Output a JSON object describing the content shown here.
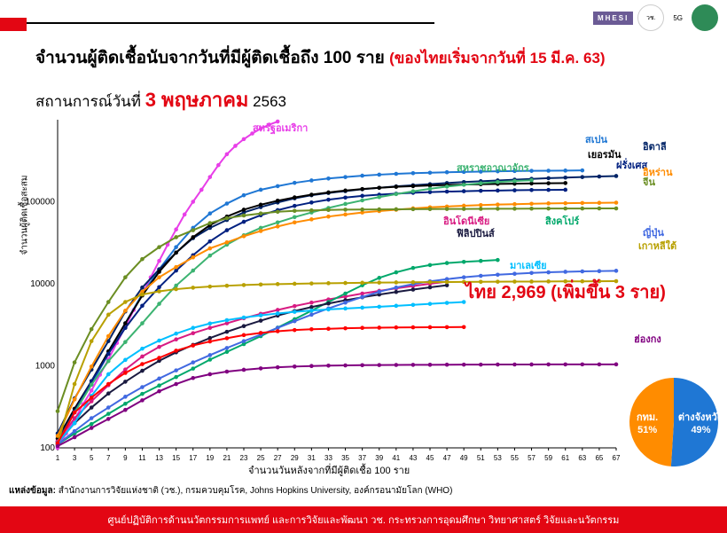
{
  "header": {
    "logos": [
      "MHESI",
      "วช.",
      "5G",
      "กรมควบคุมโรค"
    ],
    "title_black": "จำนวนผู้ติดเชื้อนับจากวันที่มีผู้ติดเชื้อถึง 100 ราย",
    "title_red": "(ของไทยเริ่มจากวันที่ 15 มี.ค. 63)",
    "subtitle_prefix": "สถานการณ์วันที่",
    "subtitle_date": "3 พฤษภาคม",
    "subtitle_year": "2563"
  },
  "chart": {
    "type": "line",
    "yscale": "log",
    "ylim": [
      100,
      1000000
    ],
    "yticks": [
      100,
      1000,
      10000,
      100000
    ],
    "xlim": [
      1,
      67
    ],
    "xticks": [
      1,
      3,
      5,
      7,
      9,
      11,
      13,
      15,
      17,
      19,
      21,
      23,
      25,
      27,
      29,
      31,
      33,
      35,
      37,
      39,
      41,
      43,
      45,
      47,
      49,
      51,
      53,
      55,
      57,
      59,
      61,
      63,
      65,
      67
    ],
    "ylabel": "จำนวนผู้ติดเชื้อสะสม",
    "xlabel": "จำนวนวันหลังจากที่มีผู้ติดเชื้อ 100 ราย",
    "background": "#ffffff",
    "grid": false,
    "series": [
      {
        "name": "สหรัฐอเมริกา",
        "color": "#e83ee8",
        "label_x": 230,
        "label_y": 5,
        "x": [
          1,
          2,
          3,
          4,
          5,
          6,
          7,
          8,
          9,
          10,
          11,
          12,
          13,
          14,
          15,
          16,
          17,
          18,
          19,
          20,
          21,
          22,
          23,
          24,
          25,
          26,
          27
        ],
        "y": [
          100,
          150,
          220,
          340,
          500,
          780,
          1200,
          1900,
          3000,
          4800,
          7500,
          12000,
          19000,
          30000,
          46000,
          70000,
          100000,
          140000,
          200000,
          280000,
          380000,
          480000,
          580000,
          680000,
          780000,
          870000,
          950000
        ]
      },
      {
        "name": "สเปน",
        "color": "#1f77d4",
        "label_x": 605,
        "label_y": 18,
        "x": [
          1,
          3,
          5,
          7,
          9,
          11,
          13,
          15,
          17,
          19,
          21,
          23,
          25,
          27,
          29,
          31,
          33,
          35,
          37,
          39,
          41,
          43,
          45,
          47,
          49,
          51,
          53,
          55,
          57,
          59,
          61,
          63
        ],
        "y": [
          120,
          280,
          600,
          1400,
          3300,
          7500,
          15000,
          28000,
          48000,
          72000,
          95000,
          120000,
          140000,
          155000,
          170000,
          182000,
          192000,
          200000,
          208000,
          214000,
          219000,
          223000,
          226000,
          229000,
          231000,
          233000,
          235000,
          237000,
          238000,
          239000,
          240000,
          241000
        ]
      },
      {
        "name": "อิตาลี",
        "color": "#002366",
        "label_x": 670,
        "label_y": 26,
        "x": [
          1,
          3,
          5,
          7,
          9,
          11,
          13,
          15,
          17,
          19,
          21,
          23,
          25,
          27,
          29,
          31,
          33,
          35,
          37,
          39,
          41,
          43,
          45,
          47,
          49,
          51,
          53,
          55,
          57,
          59,
          61,
          63,
          65,
          67
        ],
        "y": [
          150,
          400,
          900,
          2000,
          4600,
          9000,
          15000,
          24000,
          36000,
          48000,
          60000,
          74000,
          86000,
          98000,
          110000,
          120000,
          128000,
          135000,
          142000,
          148000,
          154000,
          159000,
          164000,
          169000,
          174000,
          178000,
          182000,
          186000,
          190000,
          194000,
          197000,
          200000,
          203000,
          206000
        ]
      },
      {
        "name": "เยอรมัน",
        "color": "#000000",
        "label_x": 608,
        "label_y": 35,
        "x": [
          1,
          3,
          5,
          7,
          9,
          11,
          13,
          15,
          17,
          19,
          21,
          23,
          25,
          27,
          29,
          31,
          33,
          35,
          37,
          39,
          41,
          43,
          45,
          47,
          49,
          51,
          53,
          55,
          57,
          59,
          61
        ],
        "y": [
          130,
          300,
          650,
          1500,
          3300,
          7200,
          14000,
          24000,
          37000,
          52000,
          66000,
          80000,
          92000,
          103000,
          113000,
          122000,
          130000,
          137000,
          143000,
          148000,
          152000,
          155000,
          158000,
          160000,
          162000,
          163500,
          165000,
          166000,
          167000,
          168000,
          169000
        ]
      },
      {
        "name": "ฝรั่งเศส",
        "color": "#002080",
        "label_x": 640,
        "label_y": 47,
        "x": [
          1,
          3,
          5,
          7,
          9,
          11,
          13,
          15,
          17,
          19,
          21,
          23,
          25,
          27,
          29,
          31,
          33,
          35,
          37,
          39,
          41,
          43,
          45,
          47,
          49,
          51,
          53,
          55,
          57,
          59,
          61
        ],
        "y": [
          120,
          280,
          650,
          1400,
          2900,
          5400,
          9100,
          14500,
          22300,
          32900,
          45000,
          57000,
          68500,
          79000,
          89000,
          98000,
          106000,
          112500,
          118000,
          122000,
          125500,
          128500,
          131000,
          133000,
          134500,
          136000,
          137000,
          138000,
          139000,
          139500,
          140000
        ]
      },
      {
        "name": "สหราชอาณาจักร",
        "color": "#3cb371",
        "label_x": 460,
        "label_y": 50,
        "x": [
          1,
          3,
          5,
          7,
          9,
          11,
          13,
          15,
          17,
          19,
          21,
          23,
          25,
          27,
          29,
          31,
          33,
          35,
          37,
          39,
          41,
          43,
          45,
          47,
          49,
          51,
          53,
          55,
          57
        ],
        "y": [
          115,
          270,
          590,
          1140,
          1950,
          3300,
          5700,
          9500,
          14500,
          22100,
          30000,
          39000,
          48000,
          56000,
          65000,
          74000,
          84000,
          94000,
          104000,
          114000,
          124000,
          134000,
          144000,
          153000,
          161000,
          168000,
          174000,
          179000,
          183000
        ]
      },
      {
        "name": "อิหร่าน",
        "color": "#ff8c00",
        "label_x": 670,
        "label_y": 55,
        "x": [
          1,
          3,
          5,
          7,
          9,
          11,
          13,
          15,
          17,
          19,
          21,
          23,
          25,
          27,
          29,
          31,
          33,
          35,
          37,
          39,
          41,
          43,
          45,
          47,
          49,
          51,
          53,
          55,
          57,
          59,
          61,
          63,
          65,
          67
        ],
        "y": [
          140,
          390,
          980,
          2300,
          4700,
          8000,
          12000,
          16000,
          21000,
          27000,
          32000,
          38000,
          44000,
          50000,
          56000,
          61000,
          66000,
          70000,
          74000,
          77000,
          80000,
          83000,
          85500,
          87500,
          89500,
          91000,
          92500,
          93500,
          94500,
          95500,
          96000,
          96500,
          97000,
          97500
        ]
      },
      {
        "name": "จีน",
        "color": "#6b8e23",
        "label_x": 670,
        "label_y": 66,
        "x": [
          1,
          3,
          5,
          7,
          9,
          11,
          13,
          15,
          17,
          19,
          21,
          23,
          25,
          27,
          29,
          31,
          33,
          35,
          37,
          39,
          41,
          43,
          45,
          47,
          49,
          51,
          53,
          55,
          57,
          59,
          61,
          63,
          65,
          67
        ],
        "y": [
          280,
          1100,
          2800,
          6000,
          12000,
          20000,
          28000,
          37000,
          45000,
          55000,
          63000,
          68000,
          72000,
          75500,
          77500,
          78500,
          79500,
          80100,
          80500,
          80800,
          81000,
          81200,
          81400,
          81600,
          81800,
          82000,
          82160,
          82300,
          82440,
          82600,
          82700,
          82800,
          82880,
          82900
        ]
      },
      {
        "name": "อินโดนีเซีย",
        "color": "#d81b82",
        "label_x": 445,
        "label_y": 110,
        "x": [
          1,
          3,
          5,
          7,
          9,
          11,
          13,
          15,
          17,
          19,
          21,
          23,
          25,
          27,
          29,
          31,
          33,
          35,
          37,
          39,
          41,
          43,
          45,
          47
        ],
        "y": [
          120,
          230,
          370,
          580,
          900,
          1300,
          1700,
          2100,
          2500,
          2900,
          3300,
          3800,
          4300,
          4800,
          5350,
          5900,
          6450,
          7000,
          7600,
          8200,
          8800,
          9400,
          10000,
          10600
        ]
      },
      {
        "name": "สิงคโปร์",
        "color": "#00a86b",
        "label_x": 560,
        "label_y": 110,
        "x": [
          1,
          3,
          5,
          7,
          9,
          11,
          13,
          15,
          17,
          19,
          21,
          23,
          25,
          27,
          29,
          31,
          33,
          35,
          37,
          39,
          41,
          43,
          45,
          47,
          49,
          51,
          53
        ],
        "y": [
          110,
          150,
          195,
          260,
          345,
          455,
          575,
          730,
          925,
          1190,
          1480,
          1840,
          2300,
          2920,
          3700,
          4700,
          6000,
          7600,
          9600,
          11800,
          13800,
          15600,
          16900,
          17900,
          18500,
          19000,
          19500
        ]
      },
      {
        "name": "ฟิลิปปินส์",
        "color": "#1a1a40",
        "label_x": 460,
        "label_y": 124,
        "x": [
          1,
          3,
          5,
          7,
          9,
          11,
          13,
          15,
          17,
          19,
          21,
          23,
          25,
          27,
          29,
          31,
          33,
          35,
          37,
          39,
          41,
          43,
          45,
          47
        ],
        "y": [
          115,
          200,
          310,
          460,
          640,
          870,
          1150,
          1460,
          1800,
          2180,
          2600,
          3050,
          3550,
          4100,
          4650,
          5200,
          5750,
          6300,
          6850,
          7400,
          7950,
          8500,
          9050,
          9600
        ]
      },
      {
        "name": "ญี่ปุ่น",
        "color": "#4169e1",
        "label_x": 670,
        "label_y": 123,
        "x": [
          1,
          3,
          5,
          7,
          9,
          11,
          13,
          15,
          17,
          19,
          21,
          23,
          25,
          27,
          29,
          31,
          33,
          35,
          37,
          39,
          41,
          43,
          45,
          47,
          49,
          51,
          53,
          55,
          57,
          59,
          61,
          63,
          65,
          67
        ],
        "y": [
          110,
          160,
          230,
          310,
          420,
          550,
          700,
          880,
          1100,
          1350,
          1650,
          2000,
          2400,
          2900,
          3500,
          4200,
          5000,
          5900,
          6900,
          8000,
          9000,
          9900,
          10700,
          11400,
          12000,
          12500,
          12900,
          13250,
          13550,
          13800,
          14000,
          14150,
          14280,
          14400
        ]
      },
      {
        "name": "เกาหลีใต้",
        "color": "#b8a000",
        "label_x": 665,
        "label_y": 138,
        "x": [
          1,
          3,
          5,
          7,
          9,
          11,
          13,
          15,
          17,
          19,
          21,
          23,
          25,
          27,
          29,
          31,
          33,
          35,
          37,
          39,
          41,
          43,
          45,
          47,
          49,
          51,
          53,
          55,
          57,
          59,
          61,
          63,
          65,
          67
        ],
        "y": [
          110,
          600,
          2000,
          4200,
          6000,
          7400,
          8100,
          8600,
          8960,
          9240,
          9470,
          9660,
          9800,
          9920,
          10010,
          10090,
          10160,
          10230,
          10290,
          10340,
          10390,
          10430,
          10470,
          10510,
          10540,
          10570,
          10600,
          10630,
          10650,
          10680,
          10700,
          10720,
          10740,
          10760
        ]
      },
      {
        "name": "มาเลเซีย",
        "color": "#00bfff",
        "label_x": 520,
        "label_y": 160,
        "x": [
          1,
          3,
          5,
          7,
          9,
          11,
          13,
          15,
          17,
          19,
          21,
          23,
          25,
          27,
          29,
          31,
          33,
          35,
          37,
          39,
          41,
          43,
          45,
          47,
          49
        ],
        "y": [
          115,
          200,
          430,
          790,
          1180,
          1620,
          2030,
          2470,
          2900,
          3280,
          3600,
          3880,
          4120,
          4350,
          4550,
          4720,
          4870,
          5000,
          5120,
          5250,
          5390,
          5530,
          5690,
          5850,
          6000
        ]
      },
      {
        "name": "ไทย",
        "color": "#ff0000",
        "label_x": 490,
        "label_y": 190,
        "x": [
          1,
          3,
          5,
          7,
          9,
          11,
          13,
          15,
          17,
          19,
          21,
          23,
          25,
          27,
          29,
          31,
          33,
          35,
          37,
          39,
          41,
          43,
          45,
          47,
          49
        ],
        "y": [
          114,
          270,
          410,
          600,
          820,
          1050,
          1250,
          1530,
          1770,
          1980,
          2170,
          2370,
          2520,
          2640,
          2730,
          2790,
          2830,
          2870,
          2900,
          2920,
          2938,
          2947,
          2954,
          2960,
          2969
        ]
      },
      {
        "name": "ฮ่องกง",
        "color": "#800080",
        "label_x": 660,
        "label_y": 243,
        "x": [
          1,
          3,
          5,
          7,
          9,
          11,
          13,
          15,
          17,
          19,
          21,
          23,
          25,
          27,
          29,
          31,
          33,
          35,
          37,
          39,
          41,
          43,
          45,
          47,
          49,
          51,
          53,
          55,
          57,
          59,
          61,
          63,
          65,
          67
        ],
        "y": [
          105,
          135,
          175,
          225,
          290,
          380,
          490,
          600,
          710,
          790,
          850,
          895,
          930,
          960,
          980,
          995,
          1005,
          1012,
          1018,
          1022,
          1025,
          1028,
          1030,
          1032,
          1034,
          1035,
          1037,
          1038,
          1039,
          1040,
          1040,
          1041,
          1041,
          1042
        ]
      }
    ],
    "thai_highlight": "ไทย 2,969 (เพิ่มขึ้น 3 ราย)"
  },
  "pie": {
    "slices": [
      {
        "label": "กทม.",
        "value": 51,
        "color": "#1f77d4"
      },
      {
        "label": "ต่างจังหวัด",
        "value": 49,
        "color": "#ff8c00"
      }
    ]
  },
  "source": {
    "label": "แหล่งข้อมูล:",
    "text": "สำนักงานการวิจัยแห่งชาติ (วช.), กรมควบคุมโรค, Johns Hopkins University, องค์กรอนามัยโลก (WHO)"
  },
  "footer": "ศูนย์ปฏิบัติการด้านนวัตกรรมการแพทย์ และการวิจัยและพัฒนา   วช.    กระทรวงการอุดมศึกษา วิทยาศาสตร์ วิจัยและนวัตกรรม"
}
